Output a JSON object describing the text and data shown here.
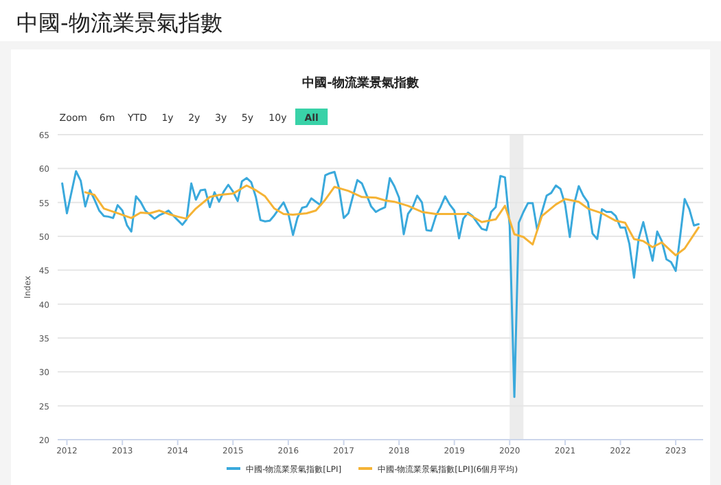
{
  "chart_data": {
    "type": "line",
    "title": "中國-物流業景氣指數",
    "subtitle": "中國-物流業景氣指數",
    "ylabel": "Index",
    "annotations": [
      "Zoom",
      "6m",
      "YTD",
      "1y",
      "2y",
      "3y",
      "5y",
      "10y",
      "All"
    ],
    "xlim": [
      "2011-11",
      "2023-07"
    ],
    "xticks": [
      {
        "value": "2012",
        "label": "2012"
      },
      {
        "value": "2013",
        "label": "2013"
      },
      {
        "value": "2014",
        "label": "2014"
      },
      {
        "value": "2015",
        "label": "2015"
      },
      {
        "value": "2016",
        "label": "2016"
      },
      {
        "value": "2017",
        "label": "2017"
      },
      {
        "value": "2018",
        "label": "2018"
      },
      {
        "value": "2019",
        "label": "2019"
      },
      {
        "value": "2020",
        "label": "2020"
      },
      {
        "value": "2021",
        "label": "2021"
      },
      {
        "value": "2022",
        "label": "2022"
      },
      {
        "value": "2023",
        "label": "2023"
      }
    ],
    "ylim": [
      20,
      65
    ],
    "yticks": [
      20,
      25,
      30,
      35,
      40,
      45,
      50,
      55,
      60,
      65
    ],
    "grid": "y",
    "legend": "bottom",
    "marker": "none",
    "line_style": "solid",
    "bands": [
      {
        "axis": "x",
        "from": "2020-01",
        "to": "2020-04",
        "color": "#ececec"
      }
    ],
    "series": [
      {
        "name": "中國-物流業景氣指數[LPI]",
        "color": "#3aa9dc",
        "x": [
          "2011-12",
          "2012-01",
          "2012-03",
          "2012-04",
          "2012-05",
          "2012-06",
          "2012-07",
          "2012-08",
          "2012-09",
          "2012-10",
          "2012-11",
          "2012-12",
          "2013-01",
          "2013-02",
          "2013-03",
          "2013-04",
          "2013-05",
          "2013-06",
          "2013-07",
          "2013-08",
          "2013-09",
          "2013-10",
          "2013-11",
          "2013-12",
          "2014-01",
          "2014-02",
          "2014-03",
          "2014-04",
          "2014-05",
          "2014-06",
          "2014-07",
          "2014-08",
          "2014-09",
          "2014-10",
          "2014-11",
          "2014-12",
          "2015-01",
          "2015-02",
          "2015-03",
          "2015-04",
          "2015-05",
          "2015-06",
          "2015-07",
          "2015-08",
          "2015-09",
          "2015-10",
          "2015-11",
          "2015-12",
          "2016-01",
          "2016-02",
          "2016-03",
          "2016-04",
          "2016-05",
          "2016-06",
          "2016-07",
          "2016-08",
          "2016-09",
          "2016-10",
          "2016-11",
          "2016-12",
          "2017-01",
          "2017-02",
          "2017-03",
          "2017-04",
          "2017-05",
          "2017-06",
          "2017-07",
          "2017-08",
          "2017-09",
          "2017-10",
          "2017-11",
          "2017-12",
          "2018-01",
          "2018-02",
          "2018-03",
          "2018-04",
          "2018-05",
          "2018-06",
          "2018-07",
          "2018-08",
          "2018-09",
          "2018-10",
          "2018-11",
          "2018-12",
          "2019-01",
          "2019-02",
          "2019-03",
          "2019-04",
          "2019-05",
          "2019-06",
          "2019-07",
          "2019-08",
          "2019-09",
          "2019-10",
          "2019-11",
          "2019-12",
          "2020-01",
          "2020-02",
          "2020-03",
          "2020-04",
          "2020-05",
          "2020-06",
          "2020-07",
          "2020-08",
          "2020-09",
          "2020-10",
          "2020-11",
          "2020-12",
          "2021-01",
          "2021-02",
          "2021-03",
          "2021-04",
          "2021-05",
          "2021-06",
          "2021-07",
          "2021-08",
          "2021-09",
          "2021-10",
          "2021-11",
          "2021-12",
          "2022-01",
          "2022-02",
          "2022-03",
          "2022-04",
          "2022-05",
          "2022-06",
          "2022-07",
          "2022-08",
          "2022-09",
          "2022-10",
          "2022-11",
          "2022-12",
          "2023-01",
          "2023-02",
          "2023-03",
          "2023-04",
          "2023-05",
          "2023-06"
        ],
        "values": [
          57.8,
          53.4,
          59.6,
          58.2,
          54.4,
          56.8,
          55.4,
          53.8,
          53.0,
          52.9,
          52.7,
          54.6,
          53.8,
          51.6,
          50.7,
          55.9,
          55.1,
          53.8,
          53.2,
          52.6,
          53.1,
          53.4,
          53.8,
          53.1,
          52.4,
          51.7,
          52.5,
          57.8,
          55.4,
          56.8,
          56.9,
          54.3,
          56.5,
          55.1,
          56.6,
          57.6,
          56.6,
          55.2,
          58.1,
          58.6,
          58.0,
          55.8,
          52.4,
          52.2,
          52.3,
          53.1,
          54.1,
          55.0,
          53.4,
          50.2,
          52.7,
          54.2,
          54.4,
          55.6,
          55.1,
          54.6,
          59.0,
          59.3,
          59.5,
          57.1,
          52.7,
          53.4,
          55.8,
          58.3,
          57.8,
          56.1,
          54.4,
          53.6,
          54.0,
          54.3,
          58.6,
          57.4,
          55.7,
          50.3,
          53.3,
          54.3,
          56.0,
          55.0,
          50.9,
          50.8,
          53.0,
          54.3,
          55.9,
          54.7,
          53.8,
          49.7,
          52.6,
          53.5,
          53.0,
          52.0,
          51.1,
          50.9,
          53.6,
          54.3,
          58.9,
          58.7,
          51.6,
          26.3,
          52.0,
          53.6,
          54.9,
          54.9,
          50.9,
          53.6,
          56.0,
          56.4,
          57.5,
          57.0,
          54.7,
          49.9,
          54.7,
          57.4,
          56.0,
          55.0,
          50.4,
          49.6,
          54.0,
          53.6,
          53.6,
          53.0,
          51.3,
          51.3,
          48.9,
          43.9,
          49.6,
          52.1,
          49.3,
          46.4,
          50.7,
          49.3,
          46.6,
          46.2,
          44.9,
          50.3,
          55.5,
          54.0,
          51.6,
          51.8
        ]
      },
      {
        "name": "中國-物流業景氣指數[LPI](6個月平均)",
        "color": "#f5b335",
        "x": [
          "2012-05",
          "2012-07",
          "2012-09",
          "2012-12",
          "2013-03",
          "2013-05",
          "2013-07",
          "2013-09",
          "2013-11",
          "2014-01",
          "2014-03",
          "2014-05",
          "2014-08",
          "2014-10",
          "2015-01",
          "2015-04",
          "2015-06",
          "2015-08",
          "2015-10",
          "2015-12",
          "2016-02",
          "2016-05",
          "2016-07",
          "2016-09",
          "2016-11",
          "2017-02",
          "2017-05",
          "2017-08",
          "2017-10",
          "2017-12",
          "2018-03",
          "2018-06",
          "2018-09",
          "2018-12",
          "2019-04",
          "2019-07",
          "2019-10",
          "2019-12",
          "2020-02",
          "2020-04",
          "2020-06",
          "2020-08",
          "2020-11",
          "2021-01",
          "2021-04",
          "2021-06",
          "2021-09",
          "2021-12",
          "2022-02",
          "2022-04",
          "2022-06",
          "2022-08",
          "2022-10",
          "2023-01",
          "2023-03",
          "2023-06"
        ],
        "values": [
          56.5,
          56.1,
          54.1,
          53.4,
          52.7,
          53.5,
          53.4,
          53.8,
          53.3,
          52.9,
          52.6,
          54.1,
          55.8,
          56.1,
          56.3,
          57.5,
          56.8,
          55.9,
          54.1,
          53.3,
          53.2,
          53.4,
          53.8,
          55.4,
          57.3,
          56.7,
          55.8,
          55.7,
          55.3,
          55.1,
          54.5,
          53.6,
          53.3,
          53.3,
          53.3,
          52.1,
          52.5,
          54.5,
          50.3,
          49.9,
          48.8,
          53.0,
          54.7,
          55.5,
          55.1,
          54.1,
          53.4,
          52.3,
          52.0,
          49.6,
          49.3,
          48.4,
          49.1,
          47.2,
          48.2,
          51.3
        ]
      }
    ]
  }
}
